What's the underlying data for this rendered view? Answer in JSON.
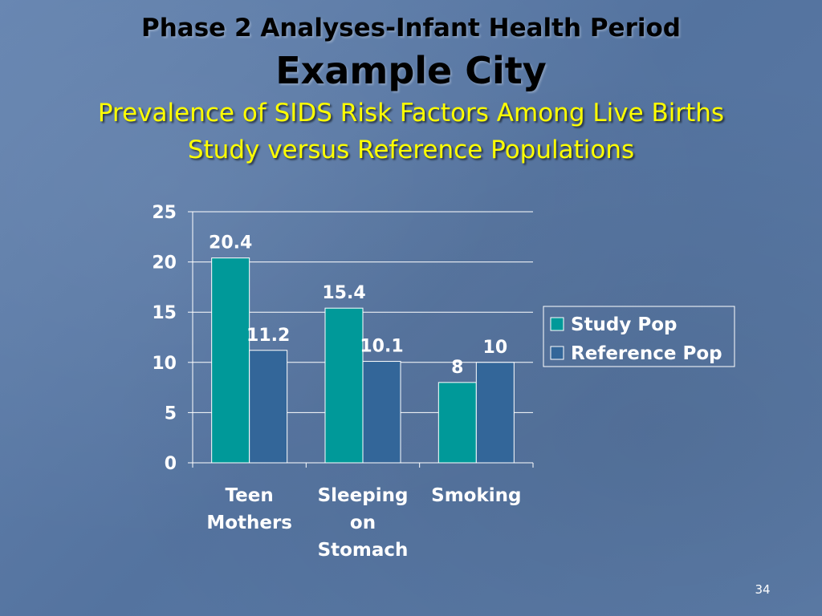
{
  "slide": {
    "title_line1": "Phase 2 Analyses-Infant Health Period",
    "title_line2": "Example City",
    "subtitle_line1": "Prevalence of SIDS Risk Factors Among Live Births",
    "subtitle_line2": "Study versus Reference Populations",
    "page_number": "34"
  },
  "chart_data": {
    "type": "bar",
    "categories": [
      [
        "Teen",
        "Mothers"
      ],
      [
        "Sleeping",
        "on",
        "Stomach"
      ],
      [
        "Smoking"
      ]
    ],
    "series": [
      {
        "name": "Study Pop",
        "values": [
          20.4,
          15.4,
          8
        ],
        "labels": [
          "20.4",
          "15.4",
          "8"
        ],
        "color": "#009999"
      },
      {
        "name": "Reference Pop",
        "values": [
          11.2,
          10.1,
          10
        ],
        "labels": [
          "11.2",
          "10.1",
          "10"
        ],
        "color": "#336699"
      }
    ],
    "ylim": [
      0,
      25
    ],
    "yticks": [
      0,
      5,
      10,
      15,
      20,
      25
    ],
    "grid": true,
    "legend": "right"
  }
}
